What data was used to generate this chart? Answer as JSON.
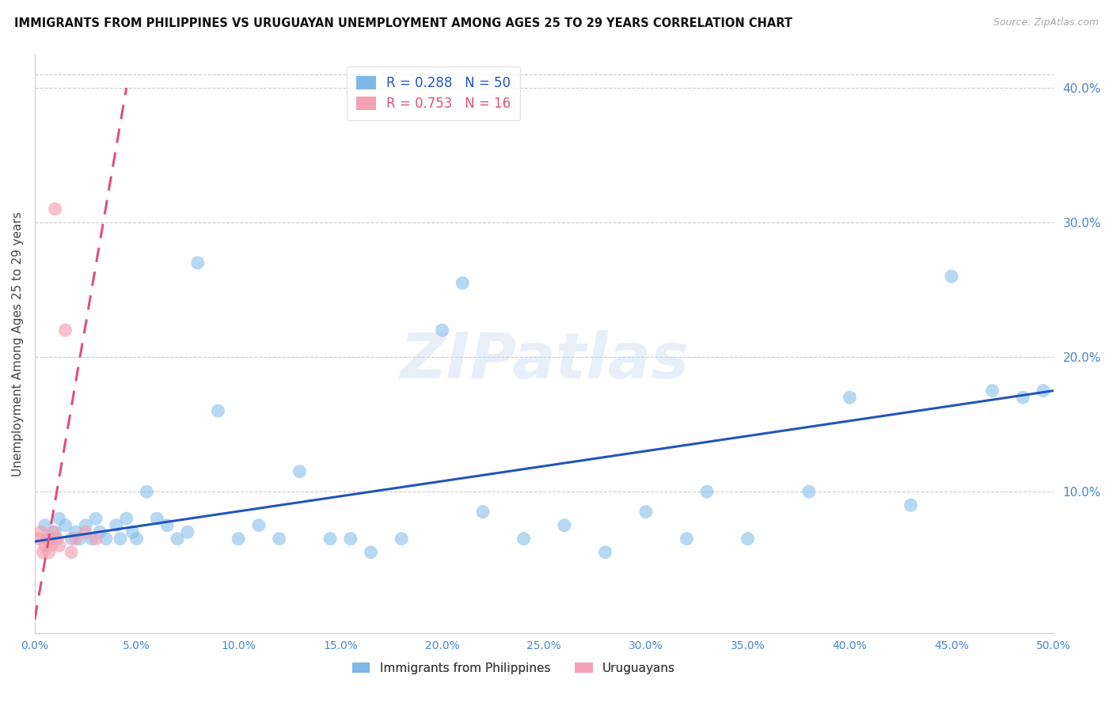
{
  "title": "IMMIGRANTS FROM PHILIPPINES VS URUGUAYAN UNEMPLOYMENT AMONG AGES 25 TO 29 YEARS CORRELATION CHART",
  "source": "Source: ZipAtlas.com",
  "ylabel": "Unemployment Among Ages 25 to 29 years",
  "xlim": [
    0.0,
    0.5
  ],
  "ylim": [
    -0.005,
    0.425
  ],
  "right_yticks": [
    0.1,
    0.2,
    0.3,
    0.4
  ],
  "xtick_labels": [
    "0.0%",
    "5.0%",
    "10.0%",
    "15.0%",
    "20.0%",
    "25.0%",
    "30.0%",
    "35.0%",
    "40.0%",
    "45.0%",
    "50.0%"
  ],
  "xtick_vals": [
    0.0,
    0.05,
    0.1,
    0.15,
    0.2,
    0.25,
    0.3,
    0.35,
    0.4,
    0.45,
    0.5
  ],
  "blue_color": "#7db8e8",
  "pink_color": "#f4a0b5",
  "blue_line_color": "#2255bb",
  "pink_line_color": "#e0507a",
  "pink_line_dashed": true,
  "legend_blue_label": "R = 0.288   N = 50",
  "legend_pink_label": "R = 0.753   N = 16",
  "bottom_legend_blue": "Immigrants from Philippines",
  "bottom_legend_pink": "Uruguayans",
  "watermark": "ZIPatlas",
  "blue_scatter_x": [
    0.005,
    0.008,
    0.01,
    0.012,
    0.015,
    0.018,
    0.02,
    0.022,
    0.025,
    0.028,
    0.03,
    0.032,
    0.035,
    0.04,
    0.042,
    0.045,
    0.048,
    0.05,
    0.055,
    0.06,
    0.065,
    0.07,
    0.075,
    0.08,
    0.09,
    0.1,
    0.11,
    0.12,
    0.13,
    0.145,
    0.155,
    0.165,
    0.18,
    0.2,
    0.21,
    0.22,
    0.24,
    0.26,
    0.28,
    0.3,
    0.32,
    0.33,
    0.35,
    0.38,
    0.4,
    0.43,
    0.45,
    0.47,
    0.485,
    0.495
  ],
  "blue_scatter_y": [
    0.075,
    0.065,
    0.07,
    0.08,
    0.075,
    0.065,
    0.07,
    0.065,
    0.075,
    0.065,
    0.08,
    0.07,
    0.065,
    0.075,
    0.065,
    0.08,
    0.07,
    0.065,
    0.1,
    0.08,
    0.075,
    0.065,
    0.07,
    0.27,
    0.16,
    0.065,
    0.075,
    0.065,
    0.115,
    0.065,
    0.065,
    0.055,
    0.065,
    0.22,
    0.255,
    0.085,
    0.065,
    0.075,
    0.055,
    0.085,
    0.065,
    0.1,
    0.065,
    0.1,
    0.17,
    0.09,
    0.26,
    0.175,
    0.17,
    0.175
  ],
  "pink_scatter_x": [
    0.002,
    0.003,
    0.004,
    0.005,
    0.006,
    0.007,
    0.008,
    0.009,
    0.01,
    0.011,
    0.012,
    0.015,
    0.018,
    0.02,
    0.025,
    0.03
  ],
  "pink_scatter_y": [
    0.065,
    0.07,
    0.055,
    0.06,
    0.065,
    0.055,
    0.06,
    0.07,
    0.31,
    0.065,
    0.06,
    0.22,
    0.055,
    0.065,
    0.07,
    0.065
  ],
  "blue_trend_x": [
    0.0,
    0.5
  ],
  "blue_trend_y": [
    0.063,
    0.175
  ],
  "pink_trend_x": [
    0.0,
    0.045
  ],
  "pink_trend_y": [
    0.005,
    0.4
  ]
}
